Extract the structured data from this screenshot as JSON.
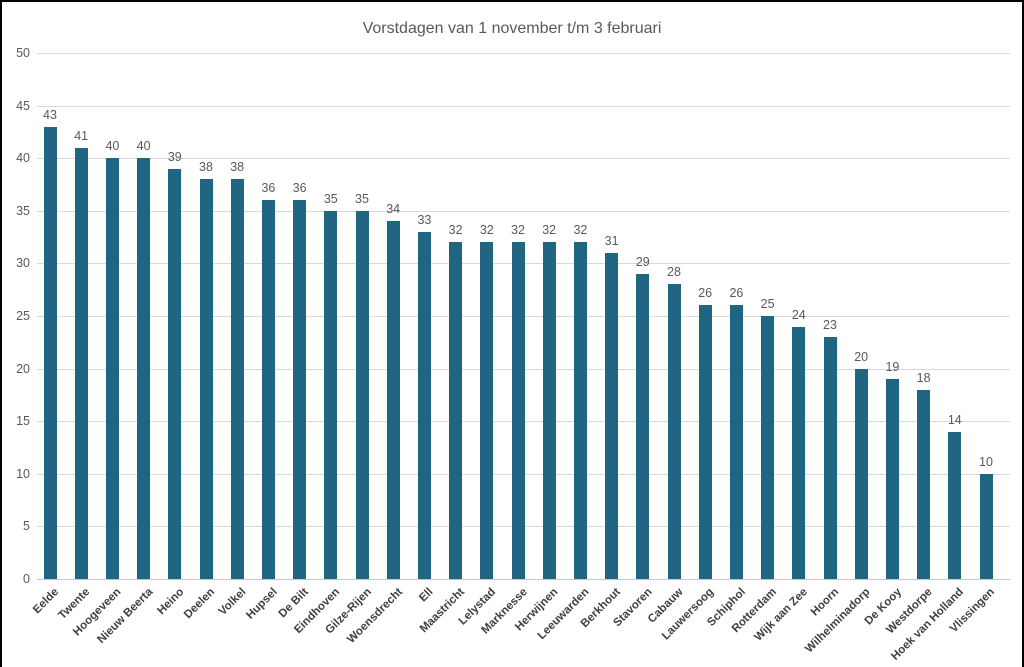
{
  "window": {
    "background": "#ffffff",
    "border_color": "#000000"
  },
  "chart_data": {
    "type": "bar",
    "title": "Vorstdagen van 1 november t/m 3 februari",
    "categories": [
      "Eelde",
      "Twente",
      "Hoogeveen",
      "Nieuw Beerta",
      "Heino",
      "Deelen",
      "Volkel",
      "Hupsel",
      "De Bilt",
      "Eindhoven",
      "Gilze-Rijen",
      "Woensdrecht",
      "Ell",
      "Maastricht",
      "Lelystad",
      "Marknesse",
      "Herwijnen",
      "Leeuwarden",
      "Berkhout",
      "Stavoren",
      "Cabauw",
      "Lauwersoog",
      "Schiphol",
      "Rotterdam",
      "Wijk aan Zee",
      "Hoorn",
      "Wilhelminadorp",
      "De Kooy",
      "Westdorpe",
      "Hoek van Holland",
      "Vlissingen"
    ],
    "values": [
      43,
      41,
      40,
      40,
      39,
      38,
      38,
      36,
      36,
      35,
      35,
      34,
      33,
      32,
      32,
      32,
      32,
      32,
      31,
      29,
      28,
      26,
      26,
      25,
      24,
      23,
      20,
      19,
      18,
      14,
      10
    ],
    "xlabel": "",
    "ylabel": "",
    "ylim": [
      0,
      50
    ],
    "yticks": [
      0,
      5,
      10,
      15,
      20,
      25,
      30,
      35,
      40,
      45,
      50
    ],
    "grid": "horizontal",
    "legend_position": "none",
    "data_labels": "above-bars",
    "bar_color": "#206582",
    "gridline_color": "#d9d9d9",
    "axis_line_color": "#c6c6c6",
    "title_color": "#595959",
    "tick_label_color": "#595959",
    "value_label_color": "#595959",
    "category_label_color": "#404040"
  }
}
